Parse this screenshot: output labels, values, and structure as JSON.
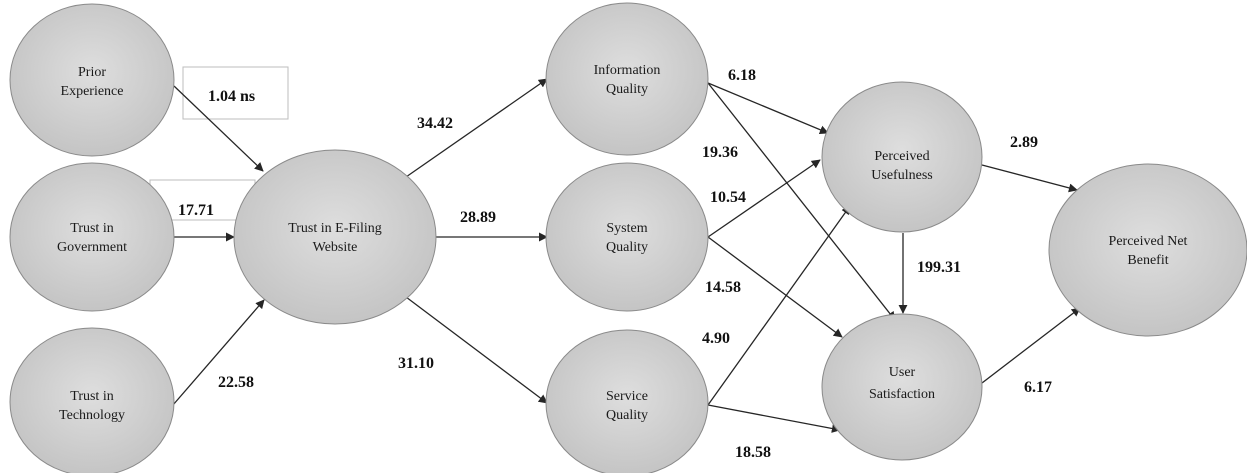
{
  "nodes": {
    "prior_experience": [
      "Prior",
      "Experience"
    ],
    "trust_government": [
      "Trust in",
      "Government"
    ],
    "trust_technology": [
      "Trust in",
      "Technology"
    ],
    "trust_efiling": [
      "Trust in E-Filing",
      "Website"
    ],
    "information_quality": [
      "Information",
      "Quality"
    ],
    "system_quality": [
      "System",
      "Quality"
    ],
    "service_quality": [
      "Service",
      "Quality"
    ],
    "perceived_usefulness": [
      "Perceived",
      "Usefulness"
    ],
    "user_satisfaction": [
      "User",
      "Satisfaction"
    ],
    "perceived_net_benefit": [
      "Perceived Net",
      "Benefit"
    ]
  },
  "edges": [
    {
      "from": "prior_experience",
      "to": "trust_efiling",
      "label": "1.04 ns"
    },
    {
      "from": "trust_government",
      "to": "trust_efiling",
      "label": "17.71"
    },
    {
      "from": "trust_technology",
      "to": "trust_efiling",
      "label": "22.58"
    },
    {
      "from": "trust_efiling",
      "to": "information_quality",
      "label": "34.42"
    },
    {
      "from": "trust_efiling",
      "to": "system_quality",
      "label": "28.89"
    },
    {
      "from": "trust_efiling",
      "to": "service_quality",
      "label": "31.10"
    },
    {
      "from": "information_quality",
      "to": "perceived_usefulness",
      "label": "6.18"
    },
    {
      "from": "information_quality",
      "to": "user_satisfaction",
      "label": "19.36"
    },
    {
      "from": "system_quality",
      "to": "perceived_usefulness",
      "label": "10.54"
    },
    {
      "from": "system_quality",
      "to": "user_satisfaction",
      "label": "14.58"
    },
    {
      "from": "service_quality",
      "to": "perceived_usefulness",
      "label": "4.90"
    },
    {
      "from": "service_quality",
      "to": "user_satisfaction",
      "label": "18.58"
    },
    {
      "from": "perceived_usefulness",
      "to": "user_satisfaction",
      "label": "199.31"
    },
    {
      "from": "perceived_usefulness",
      "to": "perceived_net_benefit",
      "label": "2.89"
    },
    {
      "from": "user_satisfaction",
      "to": "perceived_net_benefit",
      "label": "6.17"
    }
  ]
}
